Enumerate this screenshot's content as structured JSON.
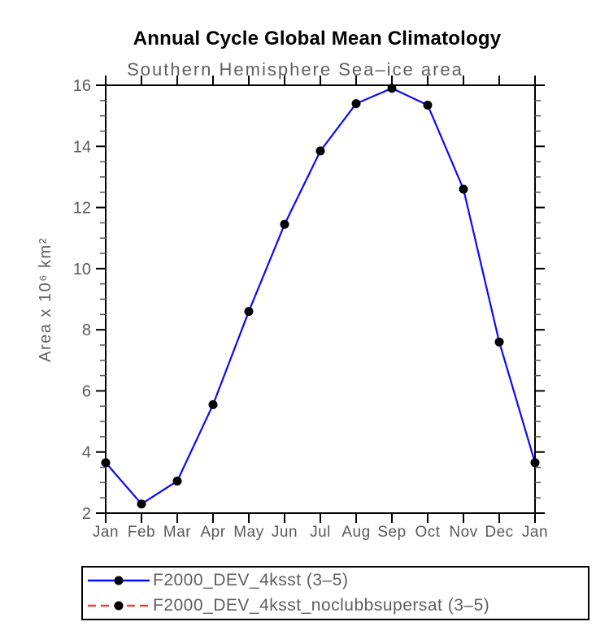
{
  "title": "Annual Cycle Global Mean Climatology",
  "subtitle": "Southern Hemisphere Sea–ice area",
  "chart_data": {
    "type": "line",
    "title": "Annual Cycle Global Mean Climatology",
    "subtitle": "Southern Hemisphere Sea–ice area",
    "xlabel": "",
    "ylabel": "Area x 10⁶ km²",
    "categories": [
      "Jan",
      "Feb",
      "Mar",
      "Apr",
      "May",
      "Jun",
      "Jul",
      "Aug",
      "Sep",
      "Oct",
      "Nov",
      "Dec",
      "Jan"
    ],
    "series": [
      {
        "name": "F2000_DEV_4ksst (3–5)",
        "color": "#0a0aff",
        "line_style": "solid",
        "marker": "filled-circle",
        "marker_color": "#000000",
        "values": [
          3.65,
          2.3,
          3.05,
          5.55,
          8.6,
          11.45,
          13.85,
          15.4,
          15.9,
          15.35,
          12.6,
          7.6,
          3.65
        ]
      },
      {
        "name": "F2000_DEV_4ksst_noclubbsupersat (3–5)",
        "color": "#f23c3c",
        "line_style": "dashed",
        "marker": "filled-circle",
        "marker_color": "#000000",
        "values": null
      }
    ],
    "ylim": [
      2,
      16
    ],
    "ytick_step": 2,
    "yminor_step": 0.5,
    "grid": false,
    "ticks": "outward-all-four-sides",
    "legend_position": "bottom-left-box"
  },
  "colors": {
    "axis": "#000000",
    "minor_tick": "#555555",
    "tick_label": "#5a5a5a",
    "subtitle_text": "#606060",
    "legend_text": "#5f5f5f",
    "title_text": "#000000",
    "background": "#ffffff"
  }
}
